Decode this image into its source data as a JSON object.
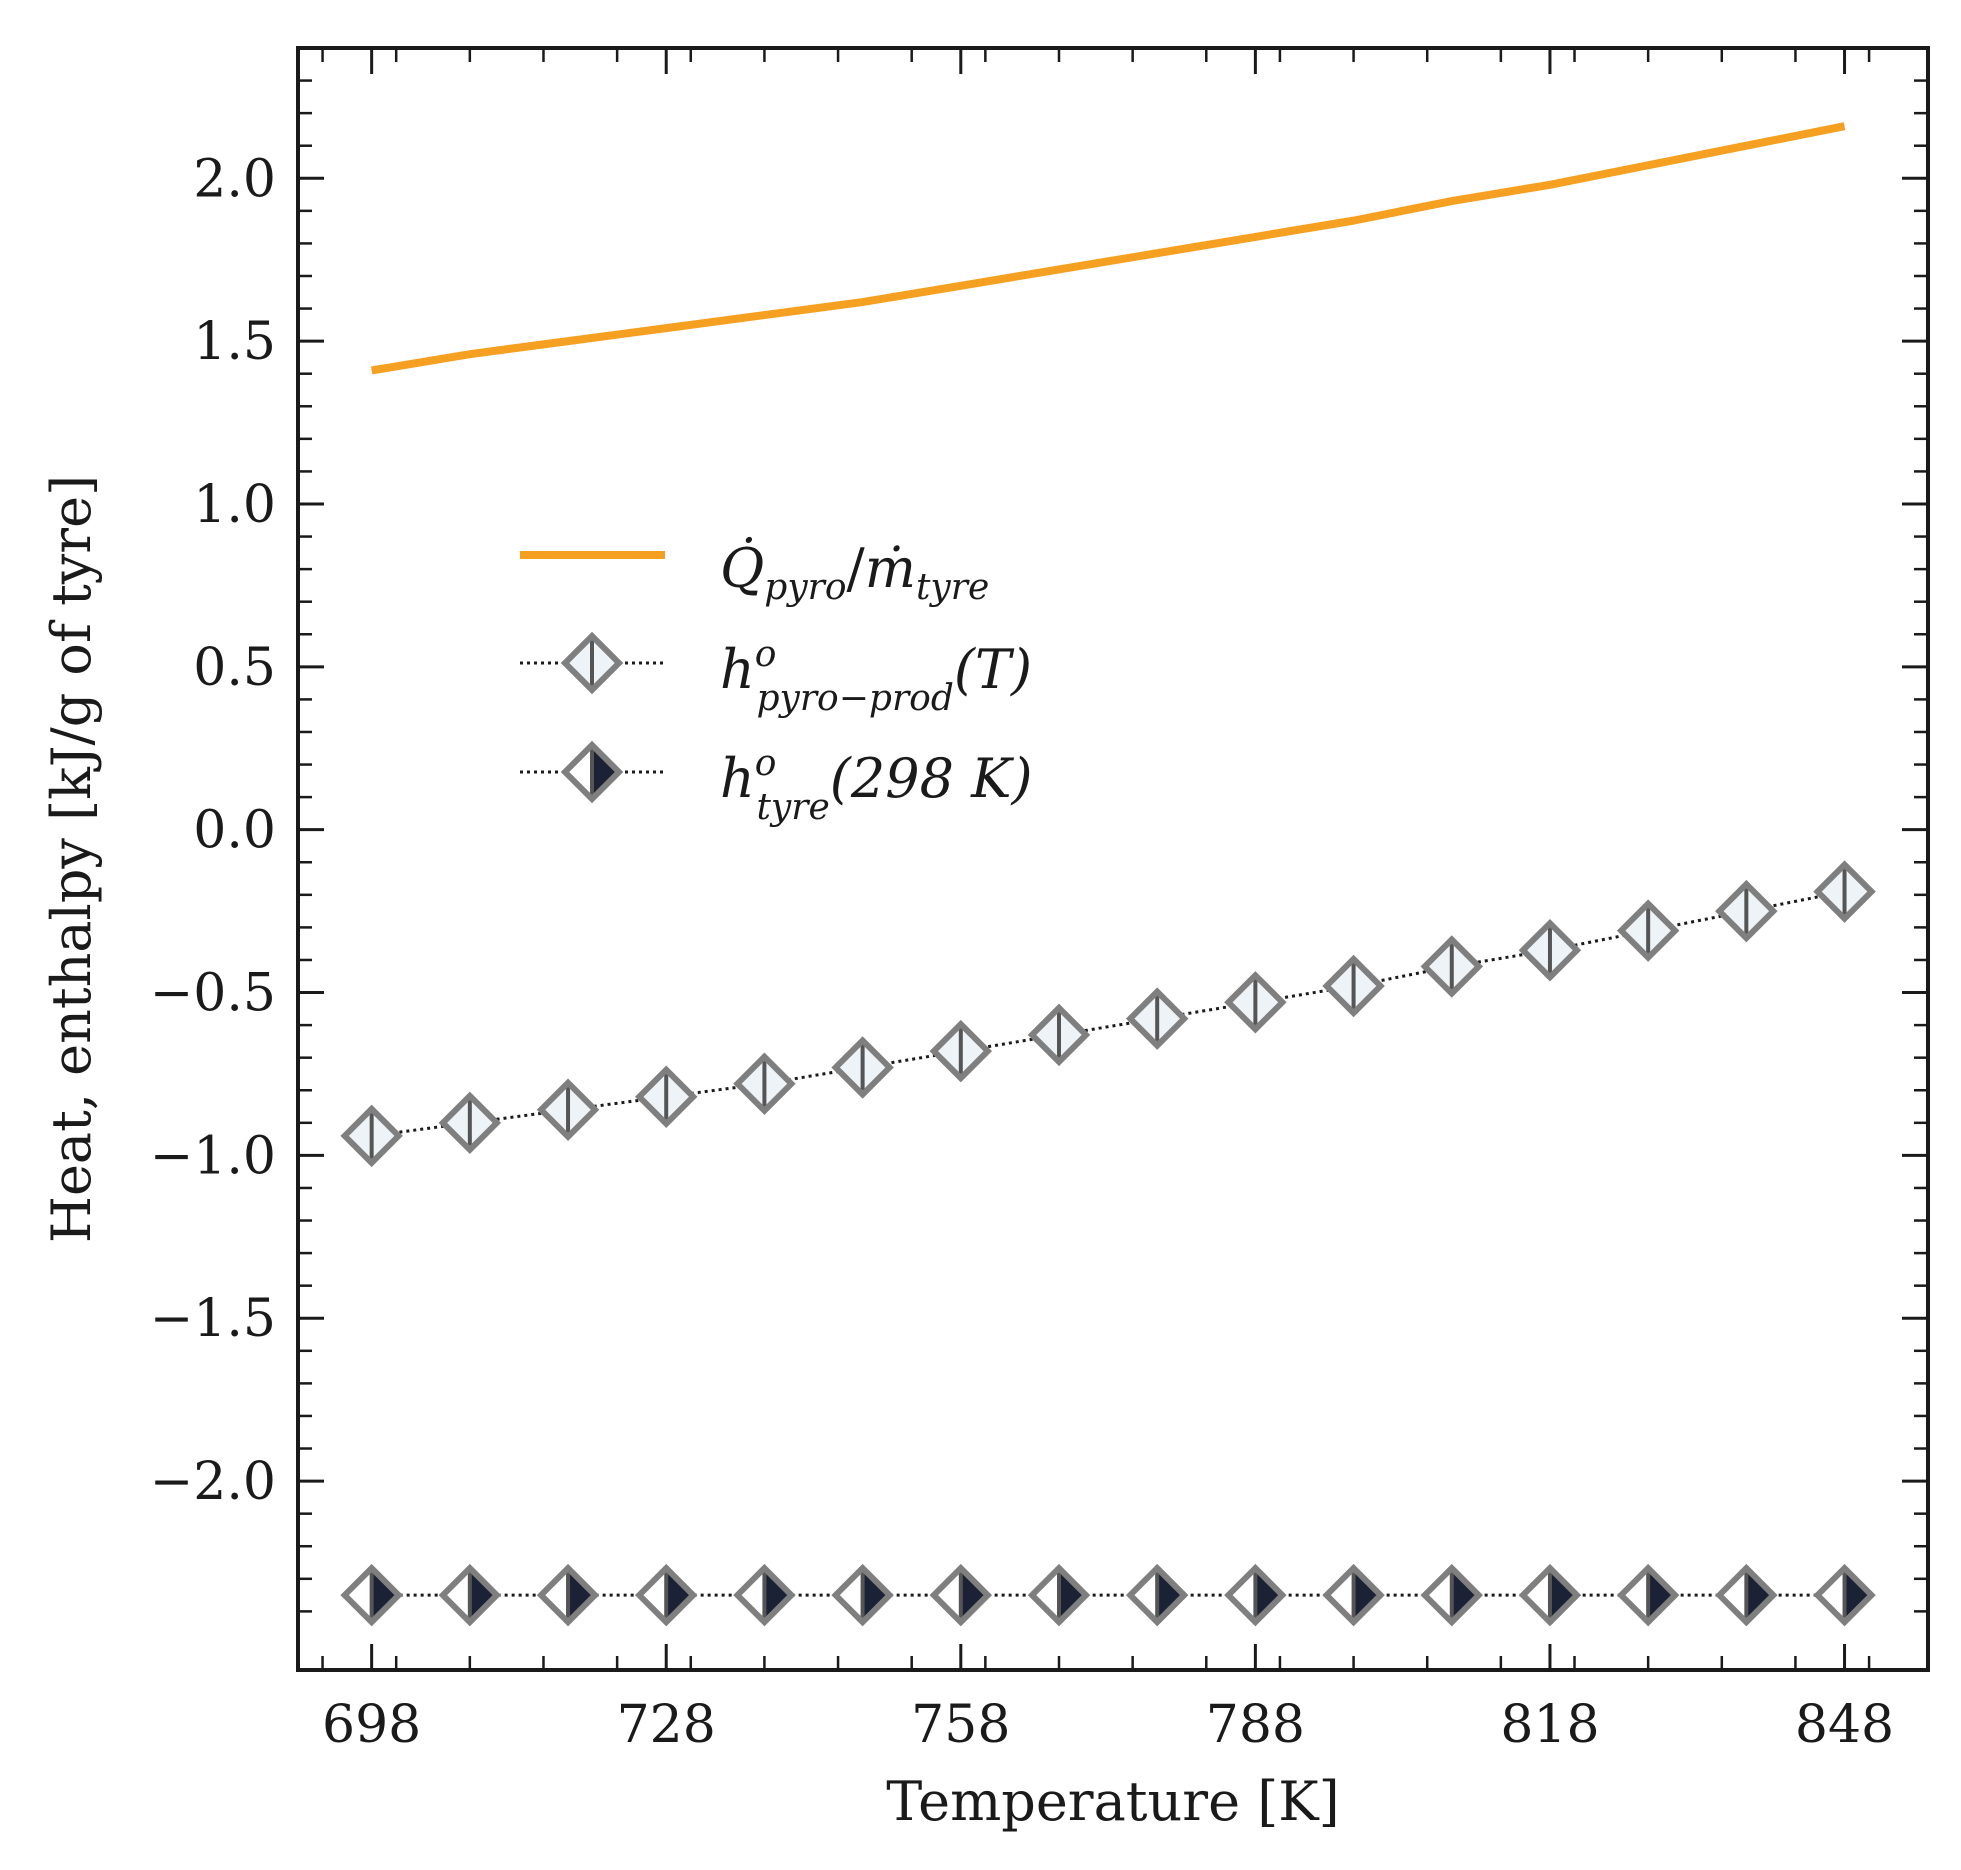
{
  "chart_data": {
    "type": "line",
    "title": "",
    "xlabel": "Temperature [K]",
    "ylabel": "Heat, enthalpy [kJ/g of tyre]",
    "xlim": [
      690.5,
      856.5
    ],
    "ylim": [
      -2.58,
      2.4
    ],
    "xticks": [
      698,
      728,
      758,
      788,
      818,
      848
    ],
    "xtick_labels": [
      "698",
      "728",
      "758",
      "788",
      "818",
      "848"
    ],
    "yticks": [
      2.0,
      1.5,
      1.0,
      0.5,
      0.0,
      -0.5,
      -1.0,
      -1.5,
      -2.0
    ],
    "ytick_labels": [
      "2.0",
      "1.5",
      "1.0",
      "0.5",
      "0.0",
      "−0.5",
      "−1.0",
      "−1.5",
      "−2.0"
    ],
    "grid": false,
    "legend_position": "center-left",
    "series": [
      {
        "name": "Q_pyro / m_tyre",
        "style": "solid",
        "color": "#f5a020",
        "x": [
          698,
          708,
          718,
          728,
          738,
          748,
          758,
          768,
          778,
          788,
          798,
          808,
          818,
          828,
          838,
          848
        ],
        "values": [
          1.41,
          1.46,
          1.5,
          1.54,
          1.58,
          1.62,
          1.67,
          1.72,
          1.77,
          1.82,
          1.87,
          1.93,
          1.98,
          2.04,
          2.1,
          2.16
        ]
      },
      {
        "name": "h_pyro-prod(T)",
        "style": "dotted",
        "marker": "diamond-open",
        "color": "#7f7f7f",
        "fill": "#eef3f8",
        "x": [
          698,
          708,
          718,
          728,
          738,
          748,
          758,
          768,
          778,
          788,
          798,
          808,
          818,
          828,
          838,
          848
        ],
        "values": [
          -0.94,
          -0.9,
          -0.86,
          -0.82,
          -0.78,
          -0.73,
          -0.68,
          -0.63,
          -0.58,
          -0.53,
          -0.48,
          -0.42,
          -0.37,
          -0.31,
          -0.25,
          -0.19
        ]
      },
      {
        "name": "h_tyre(298 K)",
        "style": "dotted",
        "marker": "diamond-half",
        "color": "#7f7f7f",
        "fill": "#1c2236",
        "x": [
          698,
          708,
          718,
          728,
          738,
          748,
          758,
          768,
          778,
          788,
          798,
          808,
          818,
          828,
          838,
          848
        ],
        "values": [
          -2.35,
          -2.35,
          -2.35,
          -2.35,
          -2.35,
          -2.35,
          -2.35,
          -2.35,
          -2.35,
          -2.35,
          -2.35,
          -2.35,
          -2.35,
          -2.35,
          -2.35,
          -2.35
        ]
      }
    ],
    "legend": [
      {
        "main": "Q̇",
        "sub": "pyro",
        "sep": "/",
        "main2": "ṁ",
        "sub2": "tyre",
        "tail": ""
      },
      {
        "main": "h",
        "sup": "o",
        "sub": "pyro−prod",
        "tail": "(T)"
      },
      {
        "main": "h",
        "sup": "o",
        "sub": "tyre",
        "tail": "(298 K)"
      }
    ]
  }
}
